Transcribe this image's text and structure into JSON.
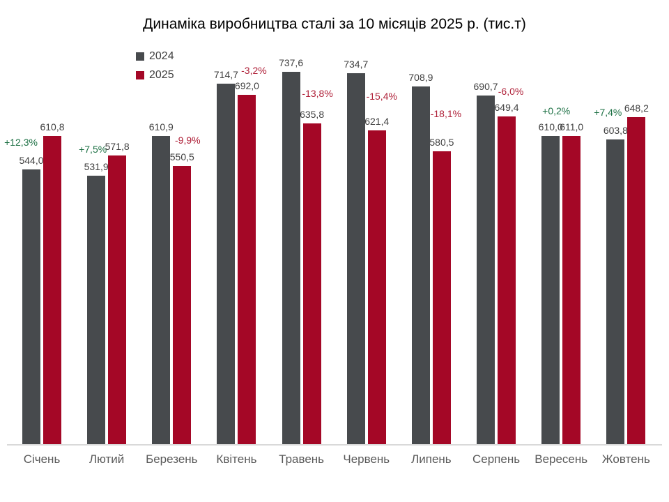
{
  "chart_data": {
    "type": "bar",
    "title": "Динаміка виробництва сталі за 10 місяців 2025 р. (тис.т)",
    "categories": [
      "Січень",
      "Лютий",
      "Березень",
      "Квітень",
      "Травень",
      "Червень",
      "Липень",
      "Серпень",
      "Вересень",
      "Жовтень"
    ],
    "series": [
      {
        "name": "2024",
        "color": "#474A4D",
        "values": [
          544.0,
          531.9,
          610.9,
          714.7,
          737.6,
          734.7,
          708.9,
          690.7,
          610.0,
          603.8
        ]
      },
      {
        "name": "2025",
        "color": "#A40726",
        "values": [
          610.8,
          571.8,
          550.5,
          692.0,
          635.8,
          621.4,
          580.5,
          649.4,
          611.0,
          648.2
        ]
      }
    ],
    "pct_change": [
      12.3,
      7.5,
      -9.9,
      -3.2,
      -13.8,
      -15.4,
      -18.1,
      -6.0,
      0.2,
      7.4
    ],
    "xlabel": "",
    "ylabel": "",
    "ylim": [
      0,
      800
    ],
    "grid": false,
    "legend_position": "top-left",
    "decimal_separator": ","
  },
  "colors": {
    "title": "#000000",
    "pct_positive": "#1E7145",
    "pct_negative": "#AF2038",
    "value_label": "#404040",
    "axis_label": "#595959",
    "baseline": "#D9D9D9",
    "background": "#FFFFFF"
  },
  "layout_hints": {
    "pct_dx": [
      -15,
      -5,
      8,
      10,
      8,
      7,
      6,
      6,
      8,
      -11
    ],
    "pct_dy": [
      30,
      29,
      28,
      26,
      34,
      40,
      45,
      27,
      27,
      30
    ]
  }
}
